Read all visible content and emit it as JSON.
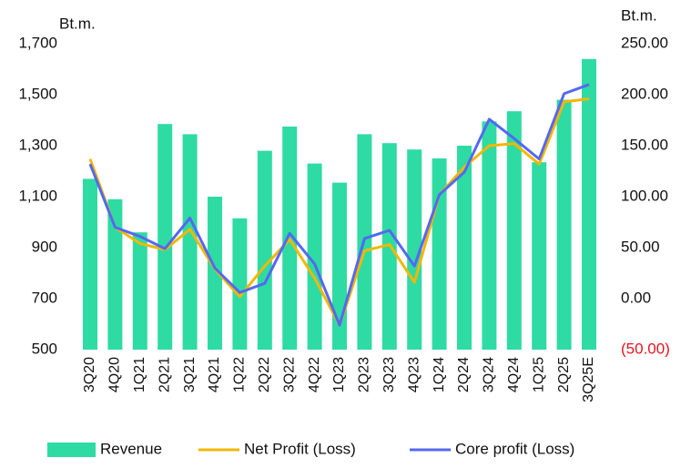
{
  "chart_data": {
    "type": "bar_line",
    "y_label": "Bt.m.",
    "y2_label": "Bt.m.",
    "categories": [
      "3Q20",
      "4Q20",
      "1Q21",
      "2Q21",
      "3Q21",
      "4Q21",
      "1Q22",
      "2Q22",
      "3Q22",
      "4Q22",
      "1Q23",
      "2Q23",
      "3Q23",
      "4Q23",
      "1Q24",
      "2Q24",
      "3Q24",
      "4Q24",
      "1Q25",
      "2Q25",
      "3Q25E"
    ],
    "series": [
      {
        "name": "Revenue",
        "type": "bar",
        "color": "#2edba3",
        "values": [
          1170,
          1090,
          960,
          1385,
          1345,
          1100,
          1015,
          1280,
          1375,
          1230,
          1155,
          1345,
          1310,
          1285,
          1250,
          1300,
          1395,
          1435,
          1235,
          1480,
          1640
        ]
      },
      {
        "name": "Net Profit (Loss)",
        "type": "line",
        "axis": "y2",
        "color": "#f2b705",
        "values": [
          137,
          70,
          54,
          48,
          68,
          29,
          2,
          32,
          58,
          20,
          -26,
          47,
          53,
          16,
          102,
          129,
          150,
          152,
          132,
          193,
          196
        ]
      },
      {
        "name": "Core profit (Loss)",
        "type": "line",
        "axis": "y2",
        "color": "#5468f2",
        "values": [
          132,
          70,
          61,
          49,
          79,
          30,
          6,
          15,
          64,
          34,
          -26,
          59,
          67,
          32,
          102,
          124,
          176,
          157,
          137,
          201,
          210
        ]
      }
    ],
    "ylim": [
      500,
      1700
    ],
    "yticks": [
      500,
      700,
      900,
      {
        "value": 1100,
        "label": "1,100"
      },
      {
        "value": 1300,
        "label": "1,300"
      },
      {
        "value": 1500,
        "label": "1,500"
      },
      {
        "value": 1700,
        "label": "1,700"
      }
    ],
    "y2lim": [
      -50,
      250
    ],
    "y2ticks": [
      {
        "value": -50,
        "label": "(50.00)"
      },
      {
        "value": 0,
        "label": "0.00"
      },
      {
        "value": 50,
        "label": "50.00"
      },
      {
        "value": 100,
        "label": "100.00"
      },
      {
        "value": 150,
        "label": "150.00"
      },
      {
        "value": 200,
        "label": "200.00"
      },
      {
        "value": 250,
        "label": "250.00"
      }
    ],
    "negative_tick_color": "#e8141e",
    "grid": false,
    "legend": "bottom"
  }
}
